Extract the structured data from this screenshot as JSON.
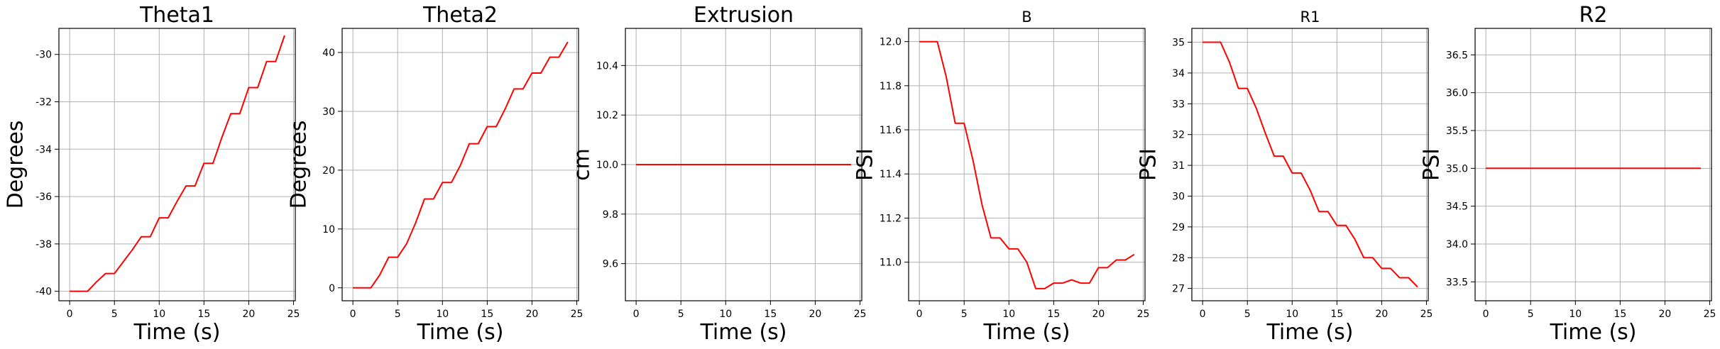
{
  "chart_data": [
    {
      "type": "line",
      "title": "Theta1",
      "xlabel": "Time (s)",
      "ylabel": "Degrees",
      "xlim": [
        -1.2,
        25.2
      ],
      "ylim": [
        -40.4,
        -28.9
      ],
      "xticks": [
        0,
        5,
        10,
        15,
        20,
        25
      ],
      "yticks": [
        -40,
        -38,
        -36,
        -34,
        -32,
        -30
      ],
      "grid": true,
      "color": "#ff0000",
      "x": [
        0,
        1,
        2,
        3,
        4,
        5,
        6,
        7,
        8,
        9,
        10,
        11,
        12,
        13,
        14,
        15,
        16,
        17,
        18,
        19,
        20,
        21,
        22,
        23,
        24
      ],
      "y": [
        -40,
        -40,
        -40,
        -39.6,
        -39.25,
        -39.25,
        -38.75,
        -38.25,
        -37.7,
        -37.7,
        -36.9,
        -36.9,
        -36.2,
        -35.55,
        -35.55,
        -34.6,
        -34.6,
        -33.5,
        -32.5,
        -32.5,
        -31.4,
        -31.4,
        -30.3,
        -30.3,
        -29.2
      ]
    },
    {
      "type": "line",
      "title": "Theta2",
      "xlabel": "Time (s)",
      "ylabel": "Degrees",
      "xlim": [
        -1.2,
        25.2
      ],
      "ylim": [
        -2.2,
        44.1
      ],
      "xticks": [
        0,
        5,
        10,
        15,
        20,
        25
      ],
      "yticks": [
        0,
        10,
        20,
        30,
        40
      ],
      "grid": true,
      "color": "#ff0000",
      "x": [
        0,
        1,
        2,
        3,
        4,
        5,
        6,
        7,
        8,
        9,
        10,
        11,
        12,
        13,
        14,
        15,
        16,
        17,
        18,
        19,
        20,
        21,
        22,
        23,
        24
      ],
      "y": [
        0,
        0,
        0,
        2.2,
        5.2,
        5.2,
        7.5,
        11,
        15.1,
        15.1,
        17.9,
        17.9,
        20.8,
        24.5,
        24.5,
        27.4,
        27.4,
        30.4,
        33.8,
        33.8,
        36.5,
        36.5,
        39.2,
        39.2,
        41.8
      ]
    },
    {
      "type": "line",
      "title": "Extrusion",
      "xlabel": "Time (s)",
      "ylabel": "cm",
      "xlim": [
        -1.2,
        25.2
      ],
      "ylim": [
        9.45,
        10.55
      ],
      "xticks": [
        0,
        5,
        10,
        15,
        20,
        25
      ],
      "yticks": [
        9.6,
        9.8,
        10.0,
        10.2,
        10.4
      ],
      "ytick_labels": [
        "9.6",
        "9.8",
        "10.0",
        "10.2",
        "10.4"
      ],
      "grid": true,
      "color": "#ff0000",
      "x": [
        0,
        24
      ],
      "y": [
        10,
        10
      ]
    },
    {
      "type": "line",
      "title": "B",
      "xlabel": "Time (s)",
      "ylabel": "PSI",
      "xlim": [
        -1.2,
        25.2
      ],
      "ylim": [
        10.825,
        12.06
      ],
      "xticks": [
        0,
        5,
        10,
        15,
        20,
        25
      ],
      "yticks": [
        11.0,
        11.2,
        11.4,
        11.6,
        11.8,
        12.0
      ],
      "ytick_labels": [
        "11.0",
        "11.2",
        "11.4",
        "11.6",
        "11.8",
        "12.0"
      ],
      "grid": true,
      "color": "#ff0000",
      "x": [
        0,
        1,
        2,
        3,
        4,
        5,
        6,
        7,
        8,
        9,
        10,
        11,
        12,
        13,
        14,
        15,
        16,
        17,
        18,
        19,
        20,
        21,
        22,
        23,
        24
      ],
      "y": [
        12,
        12,
        12,
        11.84,
        11.63,
        11.63,
        11.46,
        11.26,
        11.11,
        11.11,
        11.06,
        11.06,
        11,
        10.88,
        10.88,
        10.905,
        10.905,
        10.92,
        10.905,
        10.905,
        10.975,
        10.975,
        11.01,
        11.01,
        11.035
      ]
    },
    {
      "type": "line",
      "title": "R1",
      "xlabel": "Time (s)",
      "ylabel": "PSI",
      "xlim": [
        -1.2,
        25.2
      ],
      "ylim": [
        26.6,
        35.45
      ],
      "xticks": [
        0,
        5,
        10,
        15,
        20,
        25
      ],
      "yticks": [
        27,
        28,
        29,
        30,
        31,
        32,
        33,
        34,
        35
      ],
      "grid": true,
      "color": "#ff0000",
      "x": [
        0,
        1,
        2,
        3,
        4,
        5,
        6,
        7,
        8,
        9,
        10,
        11,
        12,
        13,
        14,
        15,
        16,
        17,
        18,
        19,
        20,
        21,
        22,
        23,
        24
      ],
      "y": [
        35,
        35,
        35,
        34.35,
        33.5,
        33.5,
        32.85,
        32.05,
        31.3,
        31.3,
        30.75,
        30.75,
        30.2,
        29.5,
        29.5,
        29.05,
        29.05,
        28.6,
        28,
        28,
        27.65,
        27.65,
        27.35,
        27.35,
        27.05
      ]
    },
    {
      "type": "line",
      "title": "R2",
      "xlabel": "Time (s)",
      "ylabel": "PSI",
      "xlim": [
        -1.2,
        25.2
      ],
      "ylim": [
        33.25,
        36.85
      ],
      "xticks": [
        0,
        5,
        10,
        15,
        20,
        25
      ],
      "yticks": [
        33.5,
        34.0,
        34.5,
        35.0,
        35.5,
        36.0,
        36.5
      ],
      "ytick_labels": [
        "33.5",
        "34.0",
        "34.5",
        "35.0",
        "35.5",
        "36.0",
        "36.5"
      ],
      "grid": true,
      "color": "#ff0000",
      "x": [
        0,
        24
      ],
      "y": [
        35,
        35
      ]
    }
  ]
}
